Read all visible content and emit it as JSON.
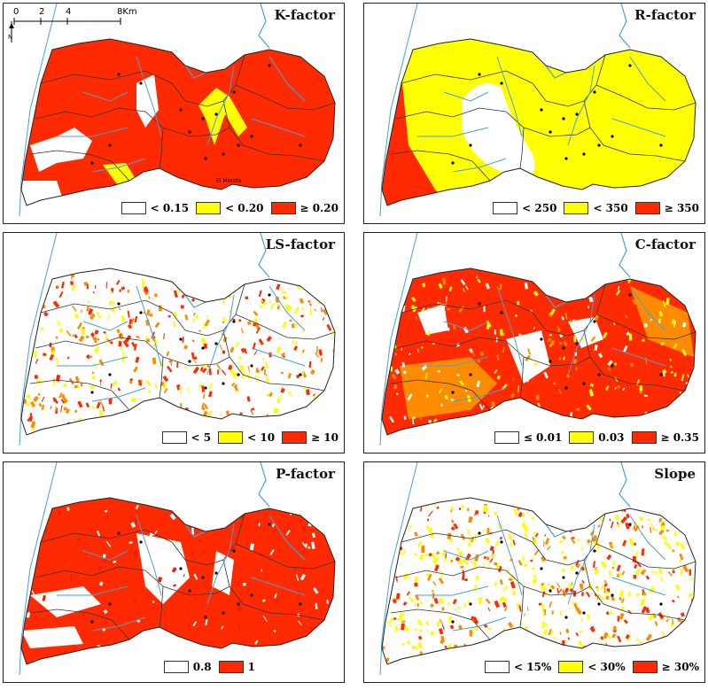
{
  "colors": {
    "white": "#ffffff",
    "yellow": "#ffff00",
    "red": "#ff2a00",
    "orange": "#ff8c00",
    "river": "#4a9fd8",
    "boundary": "#222222"
  },
  "scale": {
    "labels": [
      "0",
      "2",
      "4",
      "8Km"
    ],
    "north": "N"
  },
  "panels": [
    {
      "title": "K-factor",
      "legend": [
        {
          "label": "< 0.15",
          "color": "#ffffff"
        },
        {
          "label": "< 0.20",
          "color": "#ffff00"
        },
        {
          "label": "≥ 0.20",
          "color": "#ff2a00"
        }
      ],
      "place_label": "El Menzla"
    },
    {
      "title": "R-factor",
      "legend": [
        {
          "label": "< 250",
          "color": "#ffffff"
        },
        {
          "label": "< 350",
          "color": "#ffff00"
        },
        {
          "label": "≥ 350",
          "color": "#ff2a00"
        }
      ]
    },
    {
      "title": "LS-factor",
      "legend": [
        {
          "label": "< 5",
          "color": "#ffffff"
        },
        {
          "label": "< 10",
          "color": "#ffff00"
        },
        {
          "label": "≥ 10",
          "color": "#ff2a00"
        }
      ]
    },
    {
      "title": "C-factor",
      "legend": [
        {
          "label": "≤ 0.01",
          "color": "#ffffff"
        },
        {
          "label": "0.03",
          "color": "#ffff00"
        },
        {
          "label": "≥ 0.35",
          "color": "#ff2a00"
        }
      ]
    },
    {
      "title": "P-factor",
      "legend": [
        {
          "label": "0.8",
          "color": "#ffffff"
        },
        {
          "label": "1",
          "color": "#ff2a00"
        }
      ]
    },
    {
      "title": "Slope",
      "legend": [
        {
          "label": "< 15%",
          "color": "#ffffff"
        },
        {
          "label": "< 30%",
          "color": "#ffff00"
        },
        {
          "label": "≥ 30%",
          "color": "#ff2a00"
        }
      ]
    }
  ]
}
